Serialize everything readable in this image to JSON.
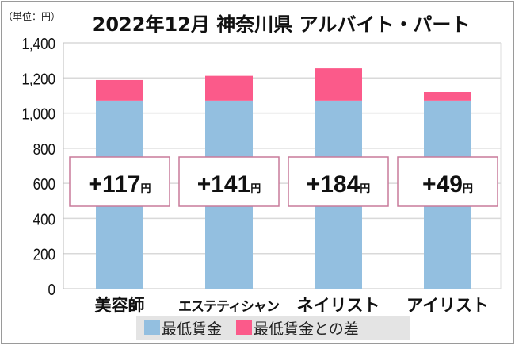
{
  "chart_data": {
    "type": "bar",
    "stacked": true,
    "title": "2022年12月 神奈川県 アルバイト・パート",
    "unit_label": "（単位：円）",
    "categories": [
      "美容師",
      "エステティシャン",
      "ネイリスト",
      "アイリスト"
    ],
    "series": [
      {
        "name": "最低賃金",
        "values": [
          1071,
          1071,
          1071,
          1071
        ],
        "color": "#93bfe0"
      },
      {
        "name": "最低賃金との差",
        "values": [
          117,
          141,
          184,
          49
        ],
        "color": "#fb5a8a"
      }
    ],
    "annotations": [
      "+117",
      "+141",
      "+184",
      "+49"
    ],
    "annotation_unit": "円",
    "ylim": [
      0,
      1400
    ],
    "yticks": [
      0,
      200,
      400,
      600,
      800,
      1000,
      1200,
      1400
    ],
    "ytick_labels": [
      "0",
      "200",
      "400",
      "600",
      "800",
      "1,000",
      "1,200",
      "1,400"
    ],
    "grid": true,
    "legend_placement": "bottom"
  }
}
